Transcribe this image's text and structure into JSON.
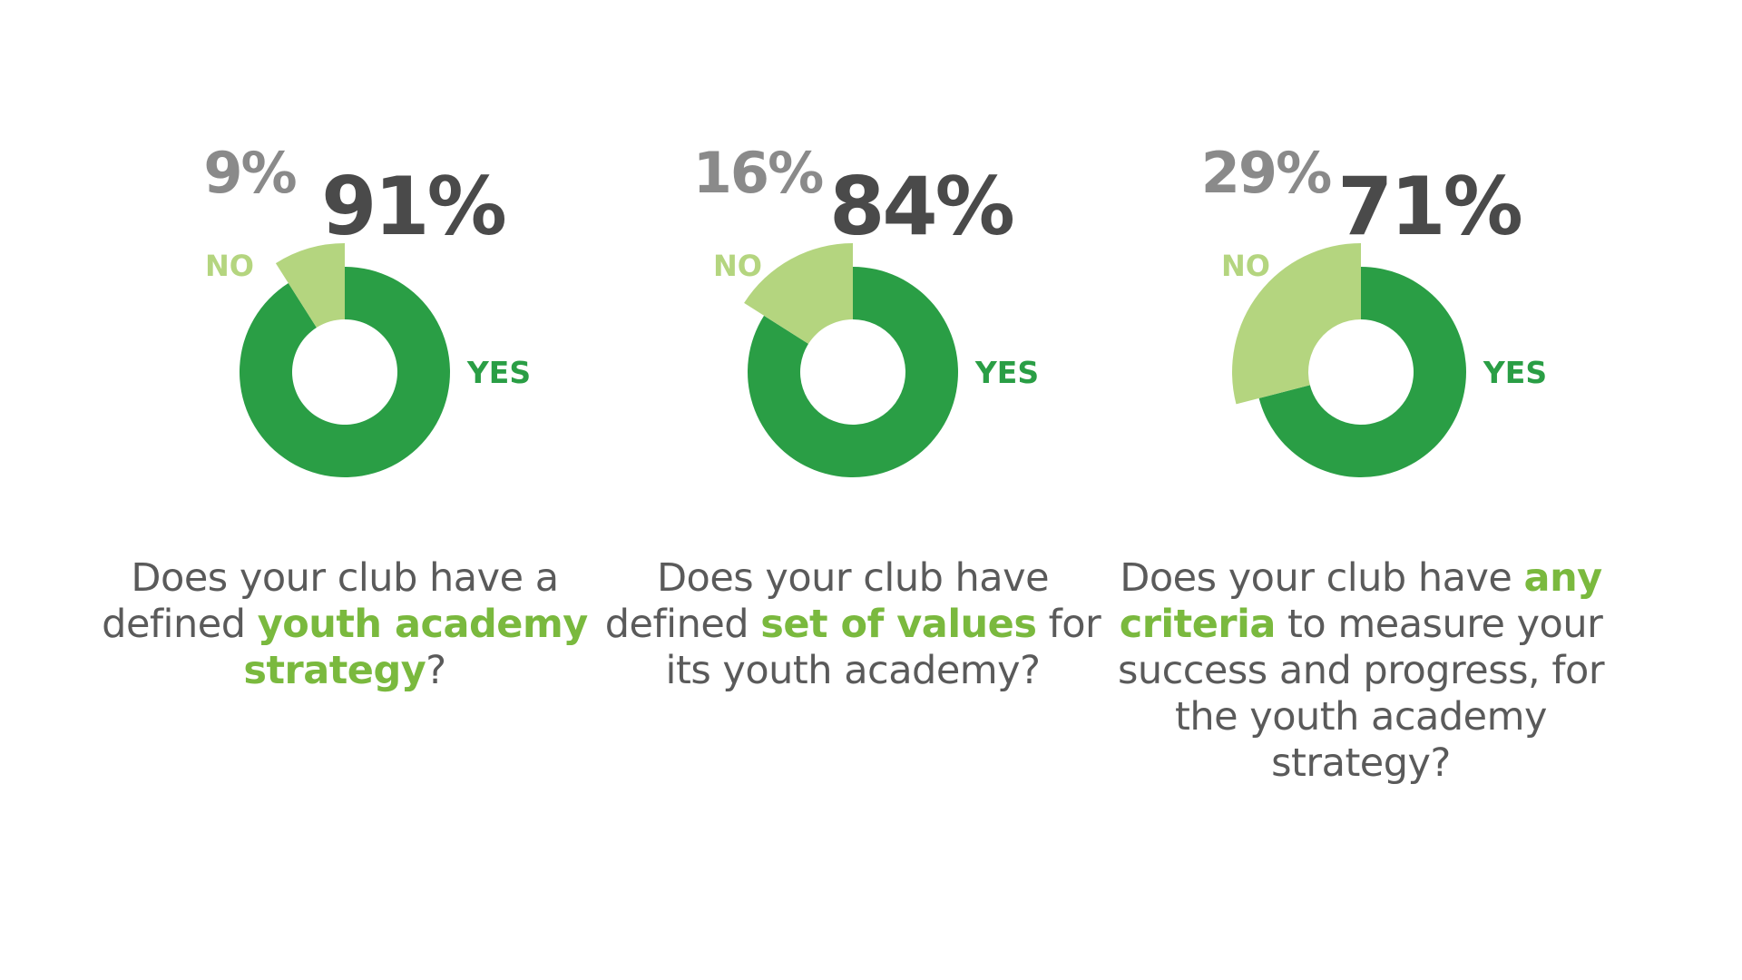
{
  "colors": {
    "yes": "#2a9e45",
    "no": "#b4d57f",
    "pct_yes": "#4a4a4a",
    "pct_no": "#8a8a8a",
    "text": "#5a5a5a",
    "highlight": "#7ab93e"
  },
  "chart_data": [
    {
      "type": "pie",
      "variant": "donut",
      "slices": [
        {
          "label": "YES",
          "value": 91,
          "display": "91%"
        },
        {
          "label": "NO",
          "value": 9,
          "display": "9%"
        }
      ],
      "question": {
        "before": "Does your club have a defined ",
        "highlight": "youth academy strategy",
        "after": "?"
      }
    },
    {
      "type": "pie",
      "variant": "donut",
      "slices": [
        {
          "label": "YES",
          "value": 84,
          "display": "84%"
        },
        {
          "label": "NO",
          "value": 16,
          "display": "16%"
        }
      ],
      "question": {
        "before": "Does your club have defined ",
        "highlight": "set of values",
        "after": " for its youth academy?"
      }
    },
    {
      "type": "pie",
      "variant": "donut",
      "slices": [
        {
          "label": "YES",
          "value": 71,
          "display": "71%"
        },
        {
          "label": "NO",
          "value": 29,
          "display": "29%"
        }
      ],
      "question": {
        "before": "Does your club have ",
        "highlight": "any criteria",
        "after": " to measure your success and progress, for the youth academy strategy?"
      }
    }
  ]
}
